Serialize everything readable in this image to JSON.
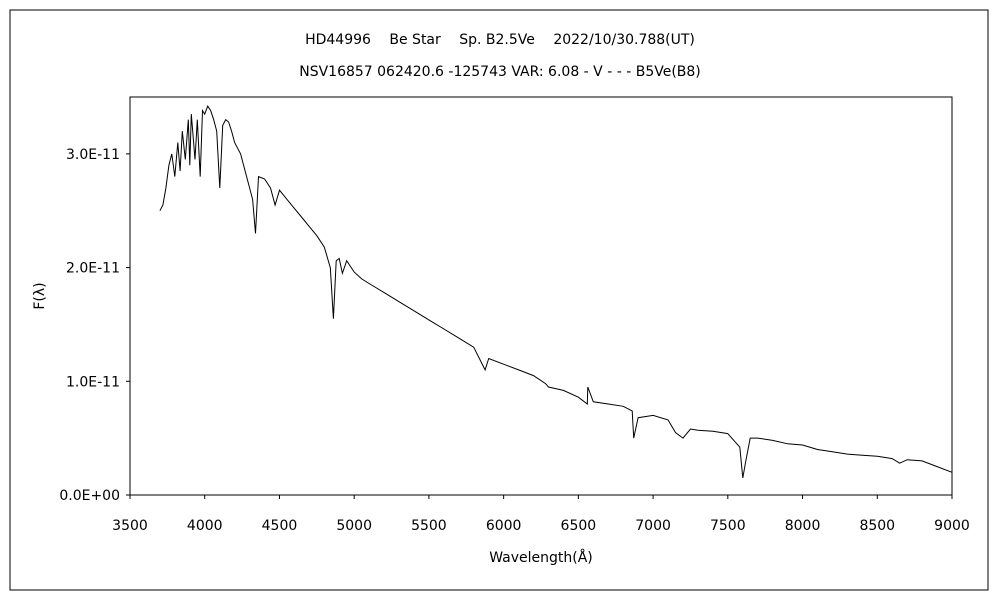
{
  "chart_data": {
    "type": "line",
    "title": "HD44996　 Be Star　 Sp. B2.5Ve　 2022/10/30.788(UT)",
    "subtitle": "NSV16857 062420.6 -125743 VAR: 6.08 - V - - - B5Ve(B8)",
    "xlabel": "Wavelength(Å)",
    "ylabel": "F(λ)",
    "xlim": [
      3500,
      9000
    ],
    "ylim": [
      0,
      3.5e-11
    ],
    "x_ticks": [
      3500,
      4000,
      4500,
      5000,
      5500,
      6000,
      6500,
      7000,
      7500,
      8000,
      8500,
      9000
    ],
    "x_tick_labels": [
      "3500",
      "4000",
      "4500",
      "5000",
      "5500",
      "6000",
      "6500",
      "7000",
      "7500",
      "8000",
      "8500",
      "9000"
    ],
    "y_ticks": [
      0,
      1e-11,
      2e-11,
      3e-11
    ],
    "y_tick_labels": [
      "0.0E+00",
      "1.0E-11",
      "2.0E-11",
      "3.0E-11"
    ],
    "grid": false,
    "legend": "none",
    "line_color": "#000000",
    "series": [
      {
        "x": [
          3700,
          3720,
          3740,
          3760,
          3780,
          3800,
          3820,
          3835,
          3850,
          3870,
          3890,
          3900,
          3910,
          3935,
          3950,
          3970,
          3985,
          4000,
          4020,
          4040,
          4060,
          4080,
          4101,
          4120,
          4140,
          4160,
          4180,
          4200,
          4240,
          4280,
          4320,
          4340,
          4360,
          4400,
          4440,
          4471,
          4500,
          4550,
          4600,
          4650,
          4700,
          4750,
          4800,
          4840,
          4861,
          4880,
          4900,
          4921,
          4950,
          5000,
          5050,
          5100,
          5200,
          5300,
          5400,
          5500,
          5600,
          5700,
          5800,
          5876,
          5900,
          6000,
          6100,
          6200,
          6280,
          6300,
          6400,
          6500,
          6560,
          6563,
          6600,
          6700,
          6800,
          6860,
          6870,
          6900,
          7000,
          7100,
          7150,
          7200,
          7250,
          7300,
          7400,
          7500,
          7580,
          7600,
          7620,
          7650,
          7700,
          7800,
          7900,
          8000,
          8100,
          8200,
          8300,
          8400,
          8500,
          8600,
          8650,
          8700,
          8800,
          8900,
          9000
        ],
        "y": [
          2.5e-11,
          2.55e-11,
          2.7e-11,
          2.9e-11,
          3e-11,
          2.8e-11,
          3.1e-11,
          2.85e-11,
          3.2e-11,
          2.95e-11,
          3.3e-11,
          2.9e-11,
          3.35e-11,
          2.95e-11,
          3.3e-11,
          2.8e-11,
          3.38e-11,
          3.35e-11,
          3.42e-11,
          3.38e-11,
          3.3e-11,
          3.2e-11,
          2.7e-11,
          3.25e-11,
          3.3e-11,
          3.28e-11,
          3.2e-11,
          3.1e-11,
          3e-11,
          2.8e-11,
          2.6e-11,
          2.3e-11,
          2.8e-11,
          2.78e-11,
          2.7e-11,
          2.55e-11,
          2.68e-11,
          2.6e-11,
          2.52e-11,
          2.44e-11,
          2.36e-11,
          2.28e-11,
          2.18e-11,
          2e-11,
          1.55e-11,
          2.06e-11,
          2.08e-11,
          1.95e-11,
          2.06e-11,
          1.96e-11,
          1.9e-11,
          1.86e-11,
          1.78e-11,
          1.7e-11,
          1.62e-11,
          1.54e-11,
          1.46e-11,
          1.38e-11,
          1.3e-11,
          1.1e-11,
          1.2e-11,
          1.15e-11,
          1.1e-11,
          1.05e-11,
          9.8e-12,
          9.5e-12,
          9.2e-12,
          8.6e-12,
          8e-12,
          9.5e-12,
          8.2e-12,
          8e-12,
          7.8e-12,
          7.4e-12,
          5e-12,
          6.8e-12,
          7e-12,
          6.6e-12,
          5.5e-12,
          5e-12,
          5.8e-12,
          5.7e-12,
          5.6e-12,
          5.4e-12,
          4.2e-12,
          1.5e-12,
          3e-12,
          5e-12,
          5e-12,
          4.8e-12,
          4.5e-12,
          4.4e-12,
          4e-12,
          3.8e-12,
          3.6e-12,
          3.5e-12,
          3.4e-12,
          3.2e-12,
          2.8e-12,
          3.1e-12,
          3e-12,
          2.5e-12,
          2e-12
        ]
      }
    ]
  }
}
